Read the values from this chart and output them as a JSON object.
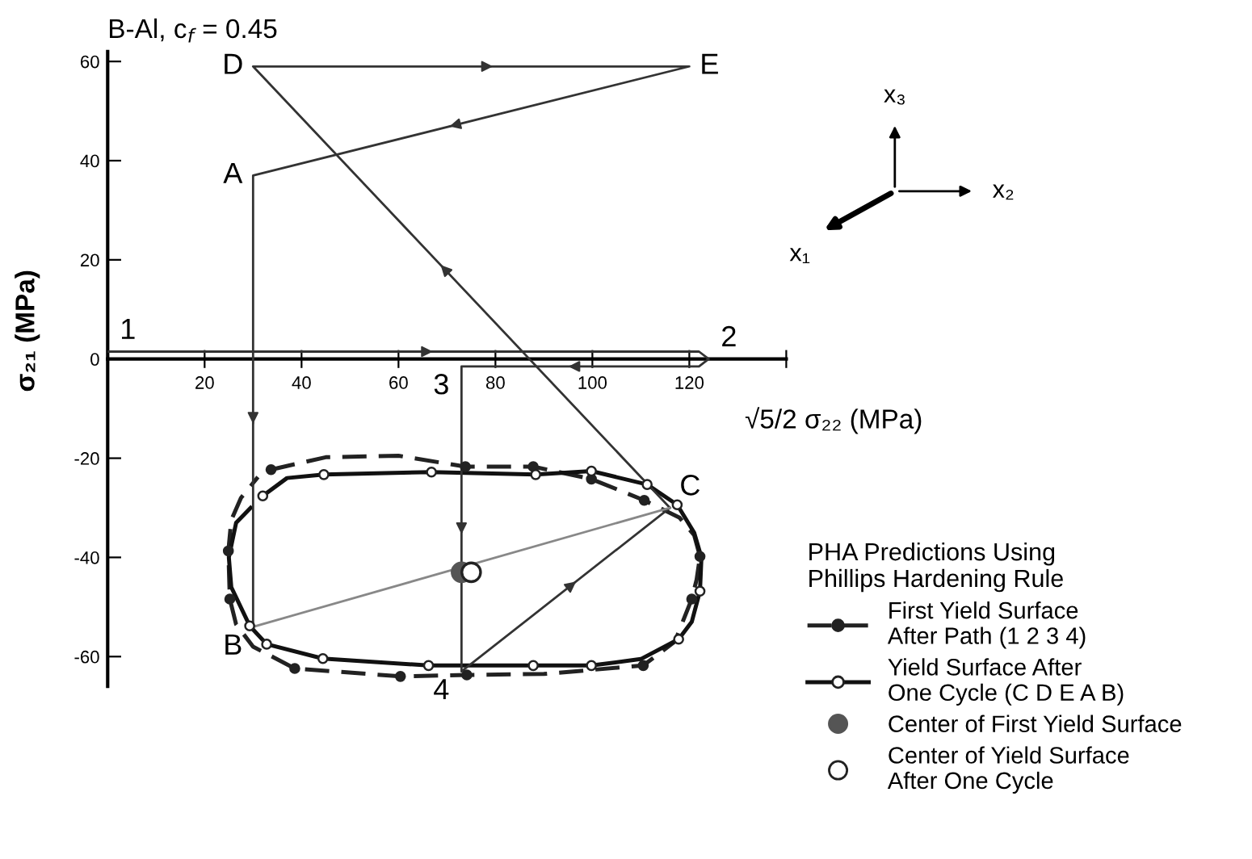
{
  "chart_data": {
    "type": "line",
    "title": "B-Al, c$_{f}$ = 0.45",
    "xlabel": "√5/2 σ₂₂ (MPa)",
    "ylabel": "σ₂₁ (MPa)",
    "legend_title": "PHA Predictions Using\nPhillips Hardening Rule",
    "xlim": [
      0,
      140
    ],
    "xticks": [
      20,
      40,
      60,
      80,
      100,
      120,
      {
        "value": 140,
        "label": null
      }
    ],
    "ylim": [
      -66,
      62
    ],
    "yticks": [
      -60,
      -40,
      -20,
      0,
      20,
      40,
      60
    ],
    "grid": false,
    "legend": "bottom right",
    "series": [
      {
        "name": "First Yield Surface\nAfter Path (1 2 3 4)",
        "color": "#222222",
        "line_style": "dashed",
        "marker": "none",
        "x": [
          33.7,
          45,
          60,
          73.8,
          87.8,
          99.8,
          110.7,
          118,
          121,
          122.2,
          121.5,
          120.5,
          117,
          110.5,
          90,
          74.1,
          60.4,
          38.6,
          30,
          26.5,
          25.2,
          24.9,
          25.5,
          27.5,
          31
        ],
        "values": [
          -22.3,
          -19.8,
          -19.5,
          -21.7,
          -21.7,
          -24.2,
          -28.5,
          -32,
          -35.5,
          -39.8,
          -44.5,
          -48.4,
          -57,
          -61.8,
          -63.5,
          -63.7,
          -64,
          -62.4,
          -58,
          -53.5,
          -48.4,
          -38.7,
          -32.5,
          -28,
          -23.8
        ]
      },
      {
        "type": "scatter",
        "color": "#222222",
        "marker": "circle",
        "x": [
          33.7,
          24.9,
          25.2,
          38.6,
          60.4,
          74.1,
          110.5,
          120.5,
          122.2,
          110.7,
          99.8,
          87.8,
          73.8
        ],
        "values": [
          -22.3,
          -38.7,
          -48.4,
          -62.4,
          -64,
          -63.7,
          -61.8,
          -48.4,
          -39.8,
          -28.5,
          -24.2,
          -21.7,
          -21.7
        ]
      },
      {
        "name": "Yield Surface After\nOne Cycle (C D E A B)",
        "color": "#111111",
        "line_style": "solid",
        "marker": "none",
        "x": [
          32,
          37,
          44.6,
          66.8,
          88.3,
          99.8,
          111.3,
          117.5,
          121,
          122.5,
          122.2,
          120.5,
          117.8,
          110,
          99.8,
          87.8,
          66.2,
          44.4,
          32.8,
          29.3,
          25.5,
          25,
          26.5,
          29.5
        ],
        "values": [
          -27.6,
          -24,
          -23.3,
          -22.8,
          -23.3,
          -22.6,
          -25.3,
          -29.4,
          -35,
          -40,
          -46.8,
          -53,
          -56.5,
          -60.5,
          -61.8,
          -61.8,
          -61.8,
          -60.4,
          -57.5,
          -53.8,
          -46,
          -40,
          -33,
          -30
        ]
      },
      {
        "type": "scatter",
        "color": "#ffffff",
        "marker": "circle",
        "x": [
          44.6,
          66.8,
          88.3,
          99.8,
          111.3,
          117.5,
          122.2,
          117.8,
          99.8,
          87.8,
          66.2,
          44.4,
          32.8,
          29.3,
          32
        ],
        "values": [
          -23.3,
          -22.8,
          -23.3,
          -22.6,
          -25.3,
          -29.4,
          -46.8,
          -56.5,
          -61.8,
          -61.8,
          -61.8,
          -60.4,
          -57.5,
          -53.8,
          -27.6
        ]
      },
      {
        "type": "scatter",
        "name": "Center of First Yield Surface",
        "color": "#555555",
        "marker": "circle",
        "x": [
          73
        ],
        "values": [
          -43
        ]
      },
      {
        "type": "scatter",
        "name": "Center of Yield Surface\nAfter One Cycle",
        "color": "#ffffff",
        "marker": "circle",
        "x": [
          75
        ],
        "values": [
          -43
        ]
      },
      {
        "color": "#333333",
        "line_style": "solid",
        "marker": "none",
        "x": [
          0,
          122,
          124,
          122,
          73,
          73,
          116
        ],
        "values": [
          1.5,
          1.5,
          0,
          -1.5,
          -1.5,
          -63,
          -30
        ]
      },
      {
        "color": "#333333",
        "line_style": "solid",
        "marker": "none",
        "x": [
          116,
          30,
          120,
          30,
          30
        ],
        "values": [
          -30,
          59,
          59,
          37,
          -54
        ]
      },
      {
        "color": "#888888",
        "line_style": "solid",
        "marker": "none",
        "x": [
          30,
          116
        ],
        "values": [
          -54,
          -30
        ]
      }
    ],
    "annotations": [
      {
        "text": "1",
        "x": 0,
        "y": 1.5
      },
      {
        "text": "2",
        "x": 124,
        "y": 0
      },
      {
        "text": "3",
        "x": 73,
        "y": -1.5
      },
      {
        "text": "4",
        "x": 73,
        "y": -63
      },
      {
        "text": "A",
        "x": 30,
        "y": 37
      },
      {
        "text": "B",
        "x": 30,
        "y": -54
      },
      {
        "text": "C",
        "x": 116,
        "y": -30
      },
      {
        "text": "D",
        "x": 30,
        "y": 59
      },
      {
        "text": "E",
        "x": 120,
        "y": 59
      },
      "x₃",
      "x₂",
      "x₁"
    ]
  }
}
